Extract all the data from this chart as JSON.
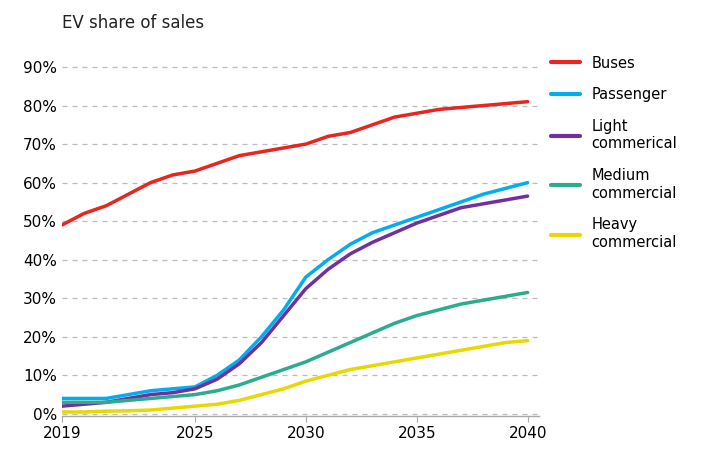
{
  "title": "EV share of sales",
  "background_color": "#ffffff",
  "xlim": [
    2019,
    2040.5
  ],
  "ylim": [
    -0.005,
    0.93
  ],
  "yticks": [
    0.0,
    0.1,
    0.2,
    0.3,
    0.4,
    0.5,
    0.6,
    0.7,
    0.8,
    0.9
  ],
  "xticks": [
    2019,
    2025,
    2030,
    2035,
    2040
  ],
  "series": [
    {
      "name": "Buses",
      "color": "#e8251e",
      "linewidth": 2.5,
      "x": [
        2019,
        2020,
        2021,
        2022,
        2023,
        2024,
        2025,
        2026,
        2027,
        2028,
        2029,
        2030,
        2031,
        2032,
        2033,
        2034,
        2035,
        2036,
        2037,
        2038,
        2039,
        2040
      ],
      "y": [
        0.49,
        0.52,
        0.54,
        0.57,
        0.6,
        0.62,
        0.63,
        0.65,
        0.67,
        0.68,
        0.69,
        0.7,
        0.72,
        0.73,
        0.75,
        0.77,
        0.78,
        0.79,
        0.795,
        0.8,
        0.805,
        0.81
      ]
    },
    {
      "name": "Passenger",
      "color": "#00aeef",
      "linewidth": 2.5,
      "x": [
        2019,
        2020,
        2021,
        2022,
        2023,
        2024,
        2025,
        2026,
        2027,
        2028,
        2029,
        2030,
        2031,
        2032,
        2033,
        2034,
        2035,
        2036,
        2037,
        2038,
        2039,
        2040
      ],
      "y": [
        0.04,
        0.04,
        0.04,
        0.05,
        0.06,
        0.065,
        0.07,
        0.1,
        0.14,
        0.2,
        0.27,
        0.355,
        0.4,
        0.44,
        0.47,
        0.49,
        0.51,
        0.53,
        0.55,
        0.57,
        0.585,
        0.6
      ]
    },
    {
      "name": "Light\ncommerical",
      "color": "#7030a0",
      "linewidth": 2.5,
      "x": [
        2019,
        2020,
        2021,
        2022,
        2023,
        2024,
        2025,
        2026,
        2027,
        2028,
        2029,
        2030,
        2031,
        2032,
        2033,
        2034,
        2035,
        2036,
        2037,
        2038,
        2039,
        2040
      ],
      "y": [
        0.02,
        0.025,
        0.03,
        0.04,
        0.05,
        0.055,
        0.065,
        0.09,
        0.13,
        0.185,
        0.255,
        0.325,
        0.375,
        0.415,
        0.445,
        0.47,
        0.495,
        0.515,
        0.535,
        0.545,
        0.555,
        0.565
      ]
    },
    {
      "name": "Medium\ncommercial",
      "color": "#2cac8e",
      "linewidth": 2.5,
      "x": [
        2019,
        2020,
        2021,
        2022,
        2023,
        2024,
        2025,
        2026,
        2027,
        2028,
        2029,
        2030,
        2031,
        2032,
        2033,
        2034,
        2035,
        2036,
        2037,
        2038,
        2039,
        2040
      ],
      "y": [
        0.03,
        0.03,
        0.03,
        0.035,
        0.04,
        0.045,
        0.05,
        0.06,
        0.075,
        0.095,
        0.115,
        0.135,
        0.16,
        0.185,
        0.21,
        0.235,
        0.255,
        0.27,
        0.285,
        0.295,
        0.305,
        0.315
      ]
    },
    {
      "name": "Heavy\ncommercial",
      "color": "#e6d800",
      "linewidth": 2.5,
      "x": [
        2019,
        2020,
        2021,
        2022,
        2023,
        2024,
        2025,
        2026,
        2027,
        2028,
        2029,
        2030,
        2031,
        2032,
        2033,
        2034,
        2035,
        2036,
        2037,
        2038,
        2039,
        2040
      ],
      "y": [
        0.005,
        0.005,
        0.007,
        0.008,
        0.01,
        0.015,
        0.02,
        0.025,
        0.035,
        0.05,
        0.065,
        0.085,
        0.1,
        0.115,
        0.125,
        0.135,
        0.145,
        0.155,
        0.165,
        0.175,
        0.185,
        0.19
      ]
    }
  ],
  "legend_entries": [
    {
      "name": "Buses",
      "label": "Buses"
    },
    {
      "name": "Passenger",
      "label": "Passenger"
    },
    {
      "name": "Light\ncommerical",
      "label": "Light\ncommerical"
    },
    {
      "name": "Medium\ncommercial",
      "label": "Medium\ncommercial"
    },
    {
      "name": "Heavy\ncommercial",
      "label": "Heavy\ncommercial"
    }
  ]
}
